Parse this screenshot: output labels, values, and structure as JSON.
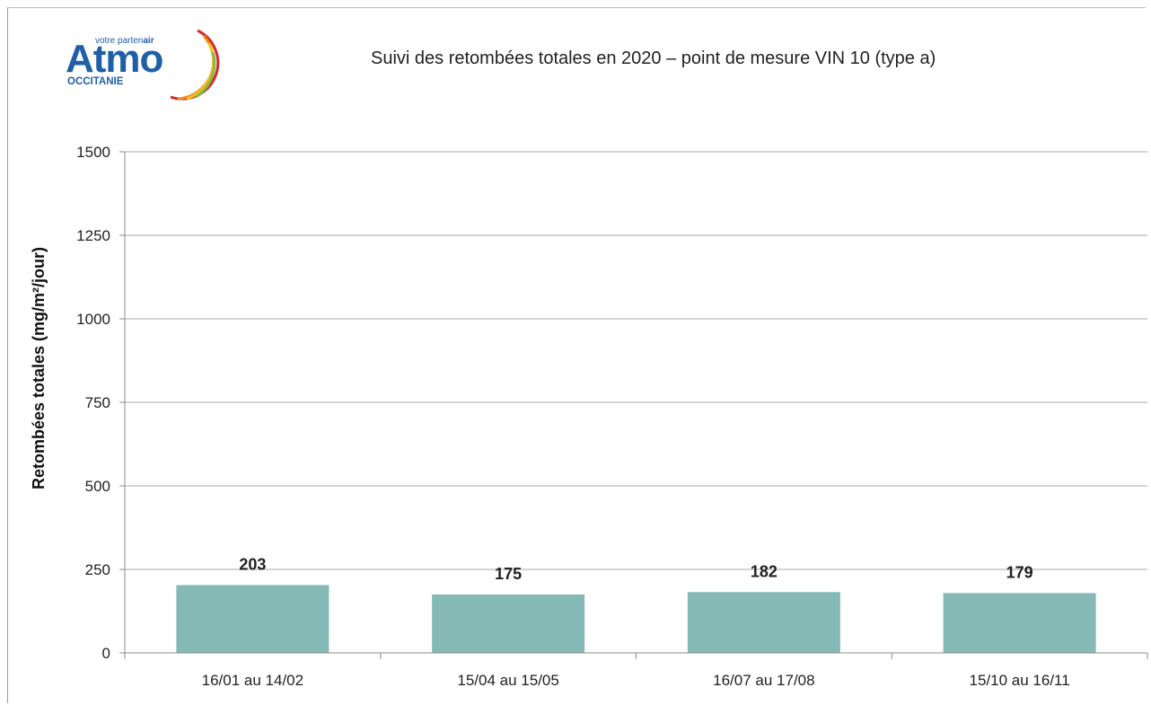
{
  "logo": {
    "name": "Atmo",
    "tagline_prefix": "votre parten",
    "tagline_suffix": "air",
    "region": "OCCITANIE"
  },
  "colors": {
    "bar": "#84b9b6",
    "grid": "#a8a8a8",
    "logo_blue": "#1f5fa8",
    "logo_arc_red": "#d7262c",
    "logo_arc_orange": "#f08a1c",
    "logo_arc_yellow": "#f4c21b",
    "logo_arc_green": "#7dbb43"
  },
  "chart_data": {
    "type": "bar",
    "title": "Suivi des retombées totales en 2020 – point de mesure VIN 10 (type a)",
    "xlabel": "",
    "ylabel": "Retombées totales (mg/m²/jour)",
    "categories": [
      "16/01 au 14/02",
      "15/04 au 15/05",
      "16/07 au 17/08",
      "15/10 au 16/11"
    ],
    "values": [
      203,
      175,
      182,
      179
    ],
    "data_labels": [
      "203",
      "175",
      "182",
      "179"
    ],
    "ylim": [
      0,
      1500
    ],
    "yticks": [
      0,
      250,
      500,
      750,
      1000,
      1250,
      1500
    ],
    "ytick_labels": [
      "0",
      "250",
      "500",
      "750",
      "1000",
      "1250",
      "1500"
    ],
    "grid": true,
    "legend": "none"
  }
}
